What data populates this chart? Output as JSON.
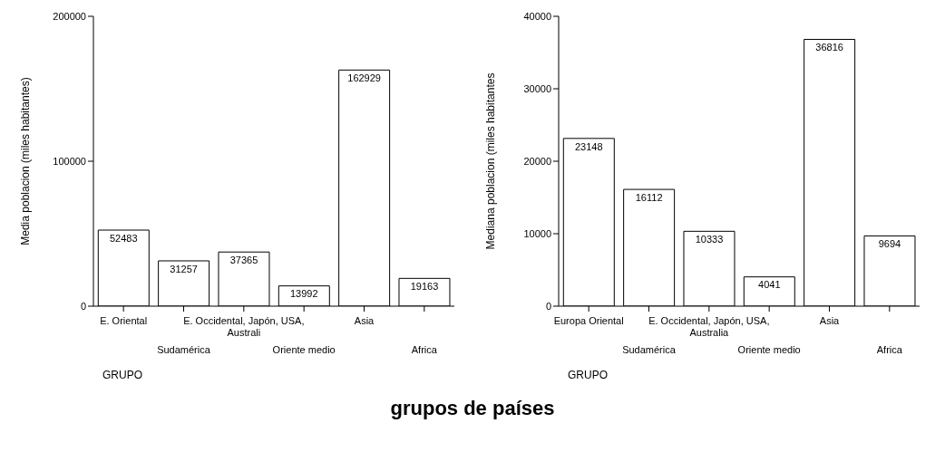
{
  "chart_data": [
    {
      "type": "bar",
      "xlabel": "GRUPO",
      "ylabel": "Media poblacion (miles habitantes)",
      "categories": [
        "E. Oriental",
        "Sudamérica",
        "E. Occidental, Japón, USA, Australi",
        "Oriente medio",
        "Asia",
        "Africa"
      ],
      "values": [
        52483,
        31257,
        37365,
        13992,
        162929,
        19163
      ],
      "color": "#ffffff",
      "ylim": [
        0,
        200000
      ],
      "yticks": [
        0,
        100000,
        200000
      ],
      "grid": false,
      "legend": false,
      "data_labels": true,
      "annotations": [
        "grupos de países"
      ]
    },
    {
      "type": "bar",
      "xlabel": "GRUPO",
      "ylabel": "Mediana poblacion (miles habitantes",
      "categories": [
        "Europa Oriental",
        "Sudamérica",
        "E. Occidental, Japón, USA, Australia",
        "Oriente medio",
        "Asia",
        "Africa"
      ],
      "values": [
        23148,
        16112,
        10333,
        4041,
        36816,
        9694
      ],
      "color": "#ffffff",
      "ylim": [
        0,
        40000
      ],
      "yticks": [
        0,
        10000,
        20000,
        30000,
        40000
      ],
      "grid": false,
      "legend": false,
      "data_labels": true
    }
  ]
}
